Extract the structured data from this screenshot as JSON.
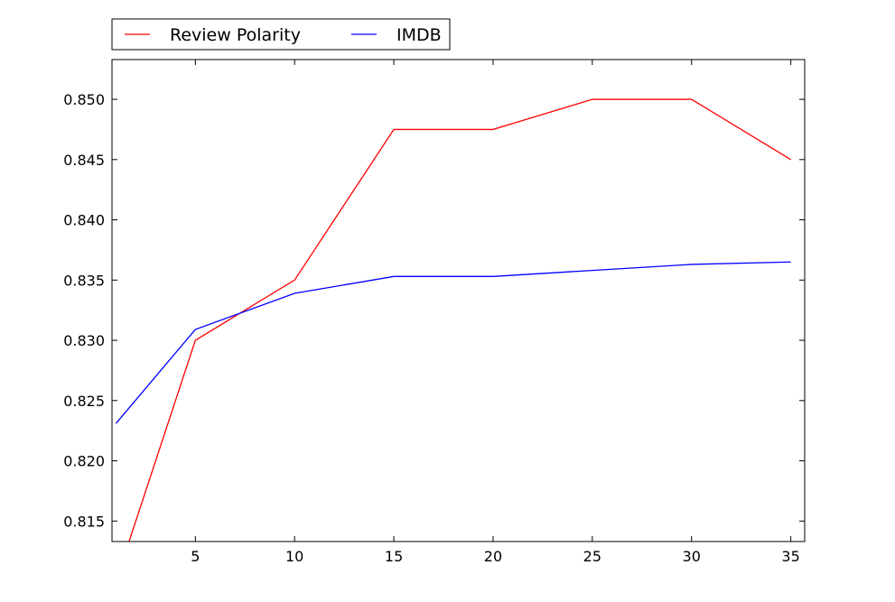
{
  "chart_data": {
    "type": "line",
    "title": "",
    "xlabel": "",
    "ylabel": "",
    "xlim": [
      0.8,
      35.7
    ],
    "ylim": [
      0.8133,
      0.8533
    ],
    "x_ticks": [
      5,
      10,
      15,
      20,
      25,
      30,
      35
    ],
    "x_tick_labels": [
      "5",
      "10",
      "15",
      "20",
      "25",
      "30",
      "35"
    ],
    "y_ticks": [
      0.815,
      0.82,
      0.825,
      0.83,
      0.835,
      0.84,
      0.845,
      0.85
    ],
    "y_tick_labels": [
      "0.815",
      "0.820",
      "0.825",
      "0.830",
      "0.835",
      "0.840",
      "0.845",
      "0.850"
    ],
    "grid": false,
    "legend_placement": "top-left, above plot",
    "series": [
      {
        "name": "Review Polarity",
        "color": "#ff0000",
        "x": [
          1,
          5,
          10,
          15,
          20,
          25,
          30,
          35
        ],
        "y": [
          0.81,
          0.83,
          0.835,
          0.8475,
          0.8475,
          0.85,
          0.85,
          0.845
        ]
      },
      {
        "name": "IMDB",
        "color": "#0000ff",
        "x": [
          1,
          5,
          10,
          15,
          20,
          25,
          30,
          35
        ],
        "y": [
          0.8231,
          0.8309,
          0.8339,
          0.8353,
          0.8353,
          0.8358,
          0.8363,
          0.8365
        ]
      }
    ]
  }
}
